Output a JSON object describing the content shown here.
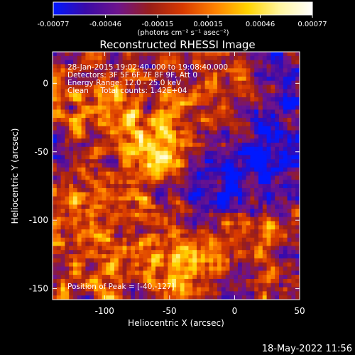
{
  "chart_data": {
    "type": "heatmap",
    "title": "Reconstructed RHESSI Image",
    "xlabel": "Heliocentric X (arcsec)",
    "ylabel": "Heliocentric Y (arcsec)",
    "xlim": [
      -140,
      50
    ],
    "ylim": [
      -158,
      23
    ],
    "xticks": [
      "-100",
      "-50",
      "0",
      "50"
    ],
    "xtick_values": [
      -100,
      -50,
      0,
      50
    ],
    "yticks": [
      "0",
      "-50",
      "-100",
      "-150"
    ],
    "ytick_values": [
      0,
      -50,
      -100,
      -150
    ],
    "colorbar": {
      "ticks": [
        "-0.00077",
        "-0.00046",
        "-0.00015",
        "0.00015",
        "0.00046",
        "0.00077"
      ],
      "tick_values": [
        -0.00077,
        -0.00046,
        -0.00015,
        0.00015,
        0.00046,
        0.00077
      ],
      "range": [
        -0.00077,
        0.00077
      ],
      "units_label": "(photons cm⁻² s⁻¹ asec⁻²)",
      "stops": [
        "#0018ff",
        "#3a0aa8",
        "#6e148c",
        "#9a1e18",
        "#d83a00",
        "#ff8200",
        "#ffd400",
        "#fff6a0",
        "#ffffff"
      ]
    },
    "annotations": {
      "time_range": "28-Jan-2015 19:02:40.000 to 19:08:40.000",
      "detectors": "Detectors: 3F 5F 6F 7F 8F 9F, Att 0",
      "energy": "Energy Range: 12.0 - 25.0 keV",
      "clean": "Clean     Total counts: 1.42E+04",
      "peak": "Position of Peak = [-40,-127]"
    },
    "peak_position": [
      -40,
      -127
    ],
    "footer_date": "18-May-2022 11:56"
  }
}
